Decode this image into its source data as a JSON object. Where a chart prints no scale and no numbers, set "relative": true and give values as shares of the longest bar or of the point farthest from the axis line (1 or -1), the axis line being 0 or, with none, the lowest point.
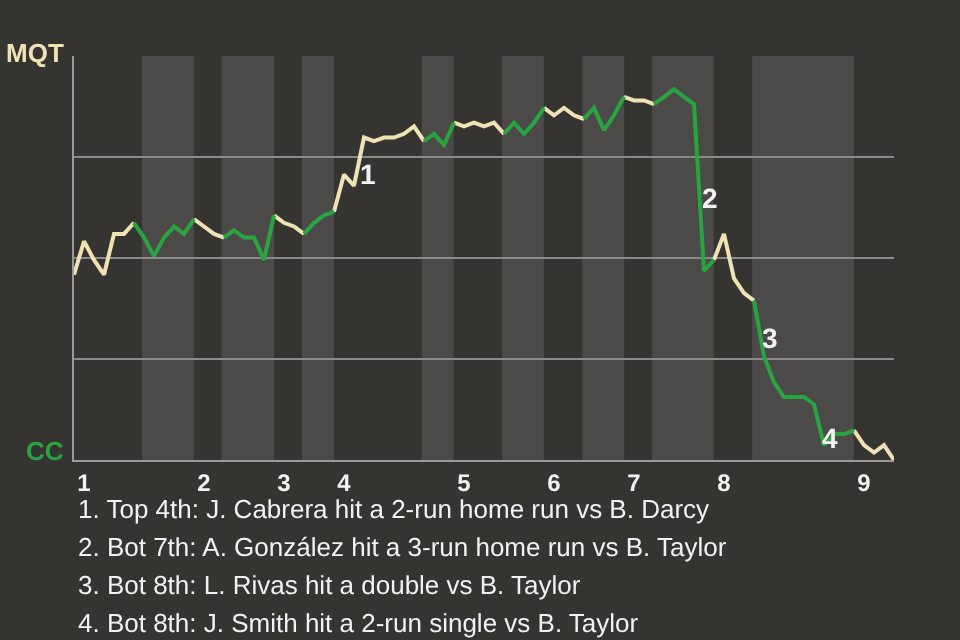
{
  "chart_data": {
    "type": "line",
    "relative": true,
    "categories": [
      null,
      "1",
      null,
      null,
      null,
      null,
      null,
      null,
      null,
      null,
      null,
      null,
      null,
      "2",
      null,
      null,
      null,
      null,
      null,
      null,
      null,
      "3",
      null,
      null,
      null,
      null,
      null,
      "4",
      null,
      null,
      null,
      null,
      null,
      null,
      null,
      null,
      null,
      null,
      null,
      "5",
      null,
      null,
      null,
      null,
      null,
      null,
      null,
      null,
      "6",
      null,
      null,
      null,
      null,
      null,
      null,
      null,
      "7",
      null,
      null,
      null,
      null,
      null,
      null,
      null,
      null,
      "8",
      null,
      null,
      null,
      null,
      null,
      null,
      null,
      null,
      null,
      null,
      null,
      null,
      null,
      "9",
      null,
      null,
      null
    ],
    "series": [
      {
        "color": "#efe2b4",
        "values": [
          0.5,
          0.59,
          0.54,
          0.5,
          0.61,
          0.61,
          0.64,
          null,
          null,
          null,
          null,
          null,
          0.65,
          0.63,
          0.61,
          0.6,
          null,
          null,
          null,
          null,
          0.66,
          0.64,
          0.63,
          0.61,
          null,
          null,
          0.67,
          0.77,
          0.74,
          0.87,
          0.86,
          0.87,
          0.87,
          0.88,
          0.9,
          0.86,
          null,
          null,
          0.91,
          0.9,
          0.91,
          0.9,
          0.91,
          0.88,
          null,
          null,
          null,
          0.95,
          0.93,
          0.95,
          0.93,
          0.92,
          null,
          null,
          null,
          0.98,
          0.97,
          0.97,
          0.96,
          null,
          null,
          null,
          null,
          null,
          0.54,
          0.61,
          0.49,
          0.45,
          0.43,
          null,
          null,
          null,
          null,
          null,
          null,
          null,
          null,
          null,
          0.08,
          0.04,
          0.02,
          0.04,
          0
        ]
      },
      {
        "color": "#2aa441",
        "values": [
          null,
          null,
          null,
          null,
          null,
          null,
          0.64,
          0.6,
          0.55,
          0.6,
          0.63,
          0.61,
          0.65,
          null,
          null,
          0.6,
          0.62,
          0.6,
          0.6,
          0.54,
          0.66,
          null,
          null,
          0.61,
          0.64,
          0.66,
          0.67,
          null,
          null,
          null,
          null,
          null,
          null,
          null,
          null,
          0.86,
          0.88,
          0.85,
          0.91,
          null,
          null,
          null,
          null,
          0.88,
          0.91,
          0.88,
          0.91,
          0.95,
          null,
          null,
          null,
          0.92,
          0.95,
          0.89,
          0.93,
          0.98,
          null,
          null,
          0.96,
          0.98,
          1,
          0.98,
          0.96,
          0.51,
          0.54,
          null,
          null,
          null,
          0.43,
          0.28,
          0.21,
          0.17,
          0.17,
          0.17,
          0.15,
          0.04,
          0.07,
          0.07,
          0.08,
          null,
          null,
          null,
          null
        ]
      }
    ],
    "grid": "y",
    "marker": "none",
    "line_style": "solid",
    "annotations": [
      "MQT",
      "CC",
      "1",
      "2",
      "3",
      "4",
      "1. Top 4th: J. Cabrera hit a 2-run home run vs B. Darcy",
      "2. Bot 7th: A. González hit a 3-run home run vs B. Taylor",
      "3. Bot 8th: L. Rivas hit a double vs B. Taylor",
      "4. Bot 8th: J. Smith hit a 2-run single vs B. Taylor"
    ]
  }
}
